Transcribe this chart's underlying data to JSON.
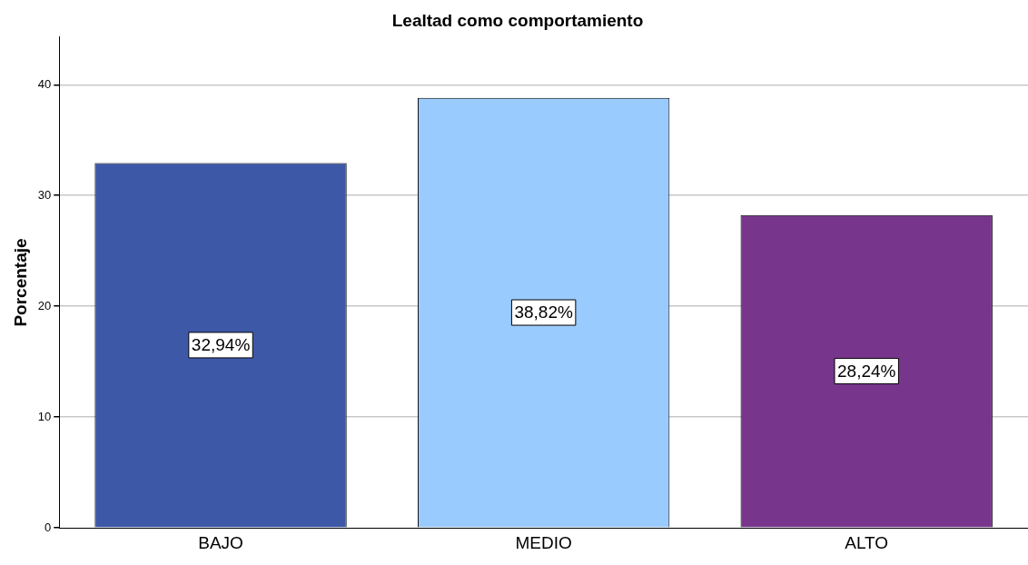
{
  "chart_data": {
    "type": "bar",
    "title": "Lealtad como comportamiento",
    "ylabel": "Porcentaje",
    "categories": [
      "BAJO",
      "MEDIO",
      "ALTO"
    ],
    "values": [
      32.94,
      38.82,
      28.24
    ],
    "colors": [
      "#3e58a8",
      "#9acbff",
      "#77368c"
    ],
    "value_labels": [
      "32,94%",
      "38,82%",
      "28,24%"
    ],
    "ylim": [
      0,
      44.3
    ],
    "yticks": [
      0,
      10,
      20,
      30,
      40
    ],
    "grid": "y",
    "legend": false
  }
}
